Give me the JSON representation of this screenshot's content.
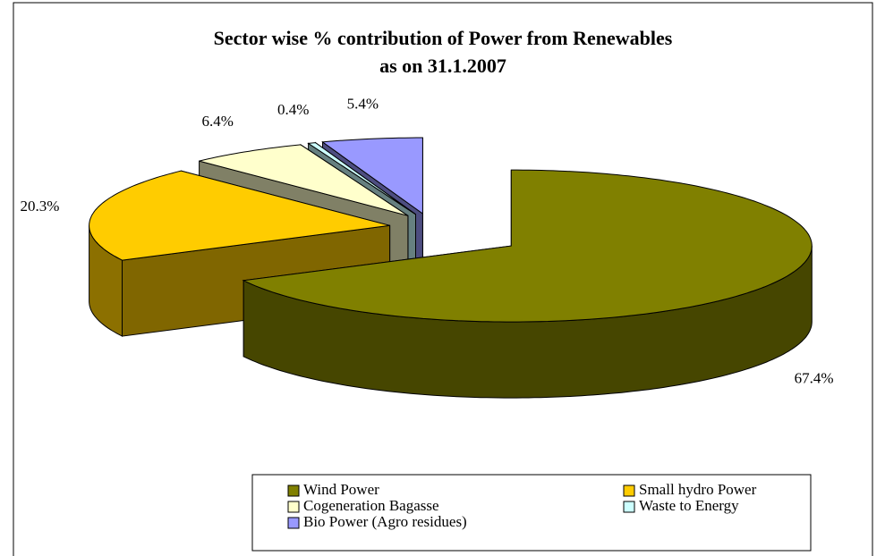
{
  "chart_data": {
    "type": "pie3d",
    "title": [
      "Sector wise % contribution of Power from Renewables",
      "as on 31.1.2007"
    ],
    "categories": [
      "Wind Power",
      "Small hydro Power",
      "Cogeneration Bagasse",
      "Waste to Energy",
      "Bio Power (Agro residues)"
    ],
    "values": [
      67.4,
      20.3,
      6.4,
      0.4,
      5.4
    ],
    "value_labels": [
      "67.4%",
      "20.3%",
      "6.4%",
      "0.4%",
      "5.4%"
    ],
    "colors": [
      "#808000",
      "#ffcc00",
      "#ffffcc",
      "#ccffff",
      "#9999ff"
    ],
    "legend": "bottom"
  }
}
